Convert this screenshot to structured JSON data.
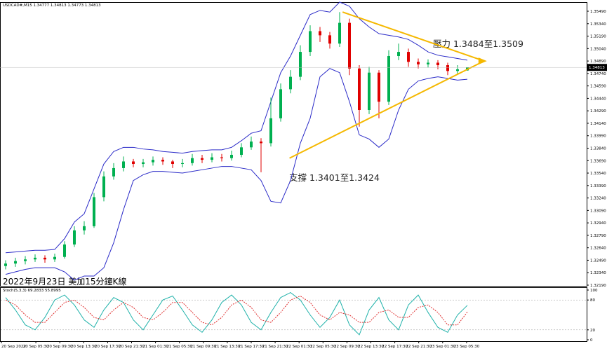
{
  "chart_data": [
    {
      "type": "candlestick",
      "header": "USDCAD#,M15 1.34777 1.34813 1.34773 1.34813",
      "title": "2022年9月23日 美加15分鐘K線",
      "annotations": [
        "壓力 1.3484至1.3509",
        "支撐 1.3401至1.3424"
      ],
      "price_label": "1.34813",
      "ylim": [
        1.32173,
        1.35583
      ],
      "yticks": [
        {
          "value": 1.3549,
          "label": "1.35490"
        },
        {
          "value": 1.3534,
          "label": "1.35340"
        },
        {
          "value": 1.3519,
          "label": "1.35190"
        },
        {
          "value": 1.3504,
          "label": "1.35040"
        },
        {
          "value": 1.3489,
          "label": "1.34890"
        },
        {
          "value": 1.3474,
          "label": "1.34740"
        },
        {
          "value": 1.3459,
          "label": "1.34590"
        },
        {
          "value": 1.3444,
          "label": "1.34440"
        },
        {
          "value": 1.3429,
          "label": "1.34290"
        },
        {
          "value": 1.3414,
          "label": "1.34140"
        },
        {
          "value": 1.3399,
          "label": "1.33990"
        },
        {
          "value": 1.3384,
          "label": "1.33840"
        },
        {
          "value": 1.3369,
          "label": "1.33690"
        },
        {
          "value": 1.3354,
          "label": "1.33540"
        },
        {
          "value": 1.3339,
          "label": "1.33390"
        },
        {
          "value": 1.3324,
          "label": "1.33240"
        },
        {
          "value": 1.3309,
          "label": "1.33090"
        },
        {
          "value": 1.3294,
          "label": "1.32940"
        },
        {
          "value": 1.3279,
          "label": "1.32790"
        },
        {
          "value": 1.3264,
          "label": "1.32640"
        },
        {
          "value": 1.3249,
          "label": "1.32490"
        },
        {
          "value": 1.3234,
          "label": "1.32340"
        },
        {
          "value": 1.3219,
          "label": "1.32190"
        }
      ],
      "xlabels": [
        "20 Sep 2022",
        "20 Sep 05:30",
        "20 Sep 09:30",
        "20 Sep 13:30",
        "20 Sep 17:30",
        "20 Sep 21:30",
        "21 Sep 01:30",
        "21 Sep 05:30",
        "21 Sep 09:30",
        "21 Sep 13:30",
        "21 Sep 17:30",
        "21 Sep 21:30",
        "22 Sep 01:30",
        "22 Sep 05:30",
        "22 Sep 09:30",
        "22 Sep 13:30",
        "22 Sep 17:30",
        "22 Sep 21:30",
        "23 Sep 01:30",
        "23 Sep 05:30"
      ],
      "up_color": "#00b050",
      "down_color": "#e00000",
      "open": [
        1.3242,
        1.3245,
        1.3248,
        1.325,
        1.3252,
        1.325,
        1.3253,
        1.3268,
        1.3285,
        1.329,
        1.3325,
        1.335,
        1.336,
        1.3368,
        1.3365,
        1.3367,
        1.337,
        1.3368,
        1.3365,
        1.3366,
        1.3372,
        1.337,
        1.3373,
        1.3372,
        1.3376,
        1.3385,
        1.3392,
        1.339,
        1.342,
        1.3455,
        1.347,
        1.35,
        1.3525,
        1.352,
        1.351,
        1.3535,
        1.348,
        1.343,
        1.3475,
        1.344,
        1.3495,
        1.35,
        1.3488,
        1.3485,
        1.3487,
        1.3484,
        1.3477,
        1.34777
      ],
      "high": [
        1.3249,
        1.3252,
        1.3254,
        1.3256,
        1.3255,
        1.3257,
        1.3272,
        1.329,
        1.3296,
        1.333,
        1.3356,
        1.3366,
        1.3374,
        1.3371,
        1.3371,
        1.3374,
        1.3373,
        1.337,
        1.3371,
        1.3377,
        1.3376,
        1.3378,
        1.3377,
        1.3381,
        1.339,
        1.3398,
        1.3396,
        1.3445,
        1.3462,
        1.3478,
        1.3508,
        1.3532,
        1.353,
        1.3524,
        1.3548,
        1.354,
        1.3484,
        1.3482,
        1.3478,
        1.3502,
        1.351,
        1.3504,
        1.3492,
        1.3491,
        1.349,
        1.3487,
        1.3484,
        1.34813
      ],
      "low": [
        1.3238,
        1.3241,
        1.3244,
        1.3247,
        1.3246,
        1.3247,
        1.3251,
        1.3265,
        1.328,
        1.3288,
        1.332,
        1.3346,
        1.3356,
        1.3361,
        1.3361,
        1.3363,
        1.3364,
        1.336,
        1.3361,
        1.3363,
        1.3366,
        1.3367,
        1.3368,
        1.3369,
        1.3373,
        1.3382,
        1.3355,
        1.3386,
        1.3416,
        1.345,
        1.3466,
        1.3495,
        1.3512,
        1.3504,
        1.3506,
        1.3472,
        1.341,
        1.3425,
        1.342,
        1.3436,
        1.349,
        1.3482,
        1.348,
        1.3481,
        1.3479,
        1.3472,
        1.3473,
        1.34773
      ],
      "close": [
        1.3245,
        1.3248,
        1.325,
        1.3252,
        1.325,
        1.3253,
        1.3268,
        1.3285,
        1.329,
        1.3325,
        1.335,
        1.336,
        1.3368,
        1.3365,
        1.3367,
        1.337,
        1.3368,
        1.3365,
        1.3366,
        1.3372,
        1.337,
        1.3373,
        1.3372,
        1.3376,
        1.3385,
        1.3392,
        1.339,
        1.342,
        1.3455,
        1.347,
        1.35,
        1.3525,
        1.352,
        1.351,
        1.3535,
        1.348,
        1.343,
        1.3475,
        1.344,
        1.3495,
        1.35,
        1.3488,
        1.3485,
        1.3487,
        1.3484,
        1.3477,
        1.3479,
        1.34813
      ],
      "bands": {
        "color": "#2b2bc8",
        "upper": [
          1.3258,
          1.3259,
          1.326,
          1.3261,
          1.3261,
          1.3262,
          1.3275,
          1.3295,
          1.3305,
          1.3335,
          1.3365,
          1.338,
          1.3385,
          1.3385,
          1.3383,
          1.3382,
          1.338,
          1.3379,
          1.3378,
          1.338,
          1.3381,
          1.3382,
          1.3382,
          1.3385,
          1.3393,
          1.3402,
          1.3405,
          1.344,
          1.3475,
          1.3495,
          1.352,
          1.3545,
          1.355,
          1.3548,
          1.356,
          1.3555,
          1.354,
          1.353,
          1.3522,
          1.352,
          1.3518,
          1.3515,
          1.3508,
          1.35,
          1.3496,
          1.3494,
          1.3492,
          1.349
        ],
        "lower": [
          1.3232,
          1.3235,
          1.3238,
          1.324,
          1.324,
          1.324,
          1.3235,
          1.3225,
          1.323,
          1.323,
          1.324,
          1.327,
          1.331,
          1.3345,
          1.3352,
          1.3356,
          1.3356,
          1.3355,
          1.3354,
          1.3356,
          1.3358,
          1.336,
          1.3362,
          1.3362,
          1.336,
          1.3358,
          1.3345,
          1.332,
          1.3318,
          1.3345,
          1.339,
          1.342,
          1.347,
          1.348,
          1.3475,
          1.344,
          1.34,
          1.3395,
          1.3385,
          1.3395,
          1.343,
          1.3455,
          1.3465,
          1.3468,
          1.347,
          1.3468,
          1.3466,
          1.3467
        ]
      },
      "trendlines": [
        {
          "x": [
            34.3,
            48.7
          ],
          "values": [
            1.3548,
            1.3489
          ],
          "color": "#f5b800"
        },
        {
          "x": [
            28.9,
            48.7
          ],
          "values": [
            1.3372,
            1.3489
          ],
          "color": "#f5b800"
        }
      ]
    },
    {
      "type": "line",
      "label": "Stoch(5,3,3) 69.2833 55.8995",
      "ylim": [
        0,
        100
      ],
      "yticks": [
        100,
        80,
        20,
        0
      ],
      "series": [
        {
          "color": "#20b2aa",
          "values": [
            85,
            60,
            30,
            20,
            45,
            80,
            90,
            70,
            40,
            25,
            60,
            85,
            75,
            40,
            20,
            50,
            80,
            88,
            60,
            30,
            15,
            40,
            75,
            90,
            70,
            35,
            20,
            55,
            85,
            95,
            80,
            50,
            25,
            45,
            80,
            30,
            10,
            60,
            85,
            40,
            20,
            70,
            90,
            55,
            25,
            15,
            50,
            69.2833
          ]
        },
        {
          "color": "#e03030",
          "values": [
            80,
            70,
            50,
            35,
            35,
            55,
            75,
            80,
            65,
            45,
            40,
            60,
            75,
            65,
            45,
            40,
            55,
            75,
            75,
            55,
            35,
            30,
            45,
            70,
            80,
            65,
            40,
            35,
            55,
            80,
            88,
            75,
            50,
            40,
            55,
            50,
            35,
            35,
            55,
            60,
            45,
            45,
            65,
            70,
            55,
            30,
            30,
            55.8995
          ]
        }
      ]
    }
  ]
}
